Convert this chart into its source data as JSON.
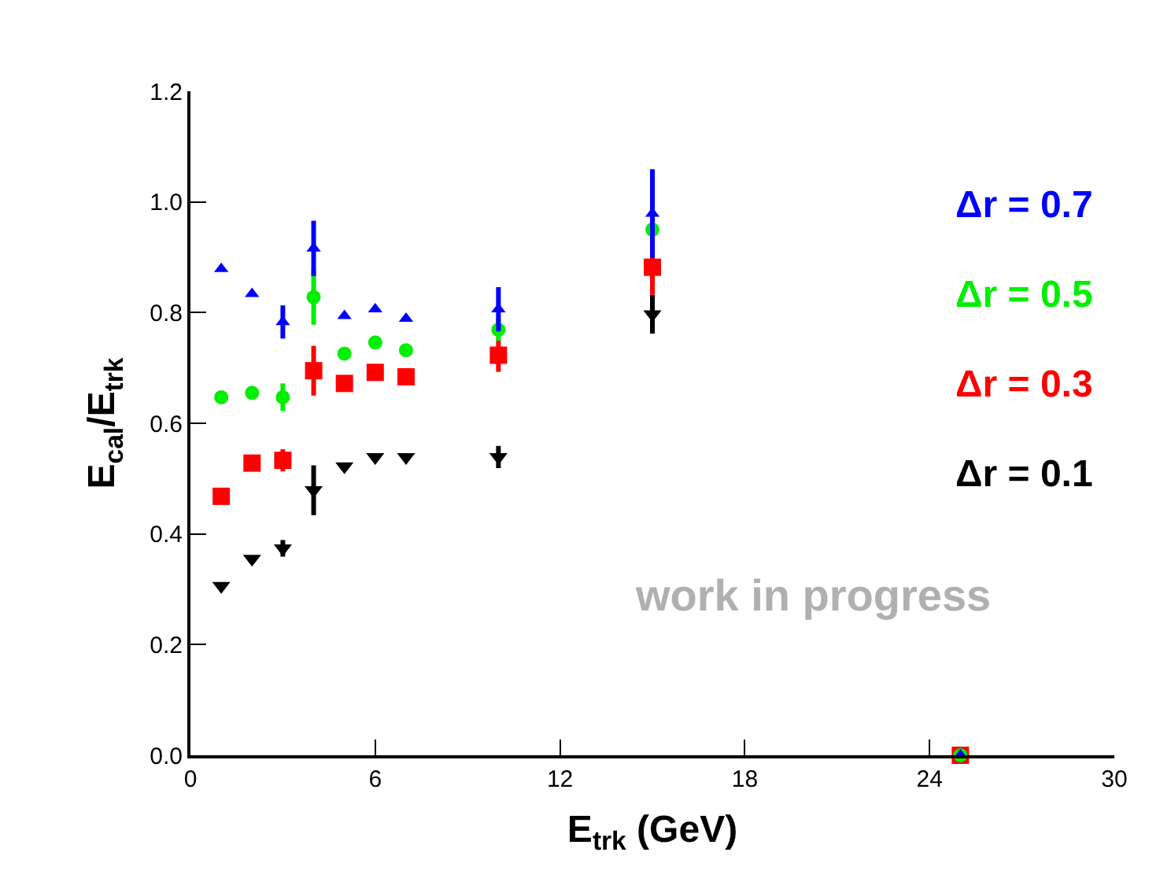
{
  "chart_data": {
    "type": "scatter",
    "xlabel": "E$_{trk}$ (GeV)",
    "ylabel": "E$_{cal}$/E$_{trk}$",
    "x": [
      1,
      2,
      3,
      4,
      5,
      6,
      7,
      10,
      15,
      25
    ],
    "series": [
      {
        "name": "Δr = 0.7",
        "color": "#0000ff",
        "marker": "triangle",
        "values": [
          0.879,
          0.834,
          0.783,
          0.916,
          0.794,
          0.806,
          0.789,
          0.806,
          0.979,
          0.0
        ],
        "errors": [
          null,
          null,
          0.03,
          0.05,
          null,
          null,
          null,
          0.04,
          0.08,
          null
        ]
      },
      {
        "name": "Δr = 0.5",
        "color": "#00ee00",
        "marker": "circle",
        "values": [
          0.647,
          0.655,
          0.647,
          0.828,
          0.726,
          0.746,
          0.732,
          0.769,
          0.95,
          0.0
        ],
        "errors": [
          null,
          null,
          0.025,
          0.05,
          null,
          null,
          null,
          0.02,
          null,
          null
        ]
      },
      {
        "name": "Δr = 0.3",
        "color": "#ff0000",
        "marker": "square",
        "values": [
          0.468,
          0.528,
          0.533,
          0.695,
          0.672,
          0.692,
          0.684,
          0.723,
          0.882,
          0.0
        ],
        "errors": [
          null,
          null,
          0.02,
          0.045,
          null,
          null,
          null,
          0.03,
          0.05,
          null
        ]
      },
      {
        "name": "Δr = 0.1",
        "color": "#000000",
        "marker": "triangle-down",
        "values": [
          0.306,
          0.355,
          0.374,
          0.479,
          0.522,
          0.539,
          0.539,
          0.539,
          0.797,
          null
        ],
        "errors": [
          null,
          null,
          0.015,
          0.045,
          null,
          null,
          null,
          0.02,
          0.035,
          null
        ]
      }
    ],
    "annotations": [
      "work in progress"
    ],
    "xlim": [
      0,
      30
    ],
    "xticks": [
      0,
      6,
      12,
      18,
      24,
      30
    ],
    "ylim": [
      0,
      1.2
    ],
    "yticks": [
      {
        "value": 0,
        "label": "0.0"
      },
      {
        "value": 0.2,
        "label": "0.2"
      },
      {
        "value": 0.4,
        "label": "0.4"
      },
      {
        "value": 0.6,
        "label": "0.6"
      },
      {
        "value": 0.8,
        "label": "0.8"
      },
      {
        "value": 1.0,
        "label": "1.0"
      },
      {
        "value": 1.2,
        "label": "1.2"
      }
    ],
    "grid": false,
    "legend": false
  }
}
